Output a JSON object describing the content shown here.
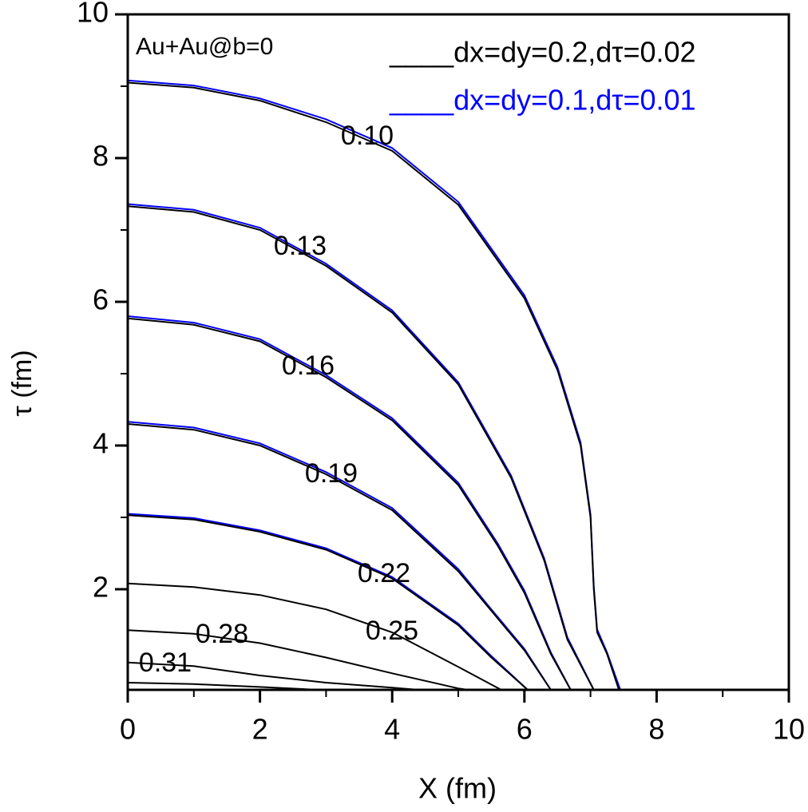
{
  "chart_data": {
    "type": "contour",
    "annotation": "Au+Au@b=0",
    "x_label": "X (fm)",
    "y_label": "τ (fm)",
    "xlim": [
      0,
      10
    ],
    "ylim": [
      0.6,
      10
    ],
    "xticks": [
      0,
      2,
      4,
      6,
      8,
      10
    ],
    "yticks": [
      2,
      4,
      6,
      8,
      10
    ],
    "series": [
      {
        "name": "____dx=dy=0.1,dτ=0.01",
        "color": "#0000ff",
        "contours": [
          {
            "x": [
              0,
              1,
              2,
              3,
              4,
              5,
              5.5,
              6,
              6.5,
              6.85,
              7.0,
              7.05,
              7.1,
              7.25,
              7.45
            ],
            "y": [
              9.08,
              9.01,
              8.83,
              8.54,
              8.14,
              7.39,
              6.74,
              6.09,
              5.09,
              4.04,
              3.04,
              2.04,
              1.44,
              1.12,
              0.6
            ]
          },
          {
            "x": [
              0,
              1,
              2,
              3,
              4,
              5,
              5.8,
              6.3,
              6.65,
              7.05
            ],
            "y": [
              7.36,
              7.28,
              7.03,
              6.53,
              5.88,
              4.88,
              3.58,
              2.43,
              1.33,
              0.6
            ]
          },
          {
            "x": [
              0,
              1,
              2,
              3,
              4,
              5,
              5.6,
              6,
              6.4,
              6.7
            ],
            "y": [
              5.8,
              5.71,
              5.48,
              4.98,
              4.38,
              3.48,
              2.63,
              1.98,
              1.12,
              0.6
            ]
          },
          {
            "x": [
              0,
              1,
              2,
              3,
              4,
              5,
              5.5,
              6,
              6.4
            ],
            "y": [
              4.33,
              4.25,
              4.03,
              3.63,
              3.13,
              2.28,
              1.72,
              1.17,
              0.6
            ]
          },
          {
            "x": [
              0,
              1,
              2,
              3,
              4,
              5,
              5.5,
              6.05
            ],
            "y": [
              3.05,
              2.99,
              2.82,
              2.57,
              2.17,
              1.52,
              1.07,
              0.6
            ]
          }
        ]
      },
      {
        "name": "____dx=dy=0.2,dτ=0.02",
        "color": "#000000",
        "contours": [
          {
            "label": "0.10",
            "x": [
              0,
              1,
              2,
              3,
              4,
              5,
              5.5,
              6,
              6.5,
              6.85,
              7.0,
              7.05,
              7.1,
              7.25,
              7.43
            ],
            "y": [
              9.05,
              8.98,
              8.8,
              8.5,
              8.1,
              7.35,
              6.7,
              6.05,
              5.05,
              4.0,
              3.0,
              2.0,
              1.4,
              1.1,
              0.6
            ]
          },
          {
            "label": "0.13",
            "x": [
              0,
              1,
              2,
              3,
              4,
              5,
              5.8,
              6.3,
              6.65,
              7.05
            ],
            "y": [
              7.33,
              7.25,
              7.0,
              6.5,
              5.85,
              4.85,
              3.55,
              2.4,
              1.3,
              0.6
            ]
          },
          {
            "label": "0.16",
            "x": [
              0,
              1,
              2,
              3,
              4,
              5,
              5.6,
              6,
              6.4,
              6.7
            ],
            "y": [
              5.77,
              5.68,
              5.45,
              4.95,
              4.35,
              3.45,
              2.6,
              1.95,
              1.1,
              0.6
            ]
          },
          {
            "label": "0.19",
            "x": [
              0,
              1,
              2,
              3,
              4,
              5,
              5.5,
              6,
              6.4
            ],
            "y": [
              4.3,
              4.22,
              4.0,
              3.6,
              3.1,
              2.25,
              1.7,
              1.15,
              0.6
            ]
          },
          {
            "label": "0.22",
            "x": [
              0,
              1,
              2,
              3,
              4,
              5,
              5.5,
              6.05
            ],
            "y": [
              3.03,
              2.97,
              2.8,
              2.55,
              2.15,
              1.5,
              1.05,
              0.6
            ]
          },
          {
            "label": "0.25",
            "x": [
              0,
              1,
              2,
              3,
              4,
              5,
              5.65
            ],
            "y": [
              2.08,
              2.03,
              1.92,
              1.72,
              1.4,
              0.92,
              0.6
            ]
          },
          {
            "label": "0.28",
            "x": [
              0,
              1,
              2,
              3,
              4,
              5,
              5.15
            ],
            "y": [
              1.43,
              1.38,
              1.25,
              1.05,
              0.83,
              0.62,
              0.6
            ]
          },
          {
            "label": "0.31",
            "x": [
              0,
              1,
              2,
              3,
              4,
              4.4
            ],
            "y": [
              0.98,
              0.93,
              0.8,
              0.7,
              0.63,
              0.6
            ]
          },
          {
            "label": null,
            "x": [
              0,
              1,
              2,
              2.9
            ],
            "y": [
              0.7,
              0.68,
              0.64,
              0.6
            ]
          }
        ]
      }
    ]
  }
}
